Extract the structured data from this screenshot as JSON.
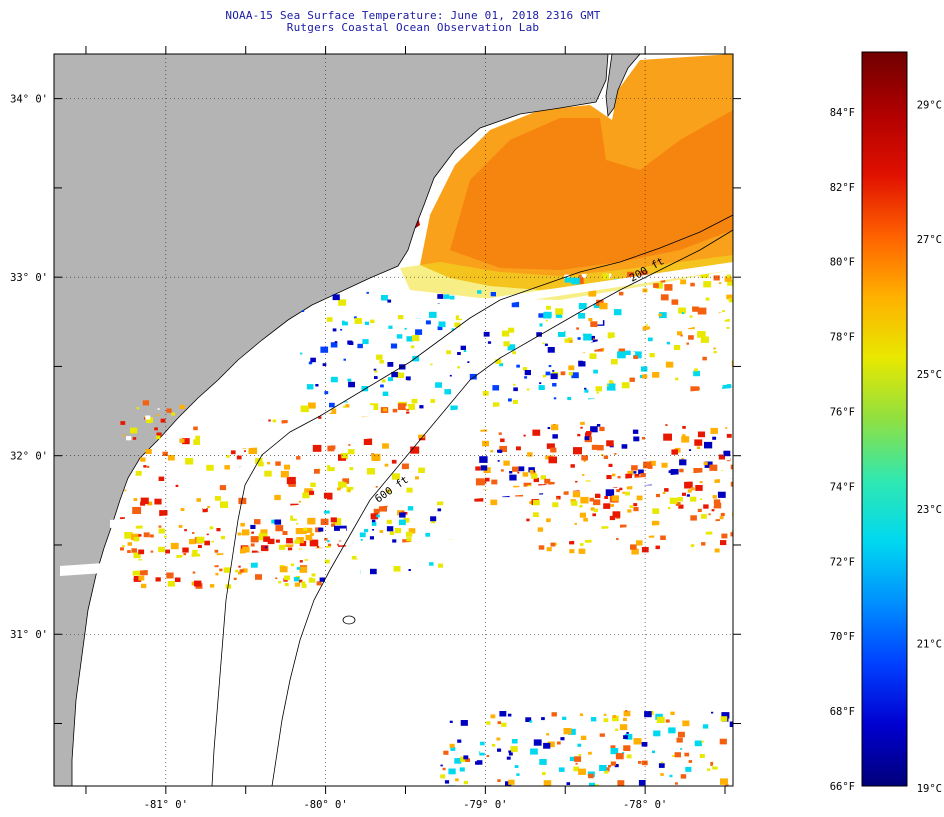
{
  "header": {
    "title": "NOAA-15 Sea Surface Temperature:  June 01, 2018 2316 GMT",
    "subtitle": "Rutgers Coastal Ocean Observation Lab"
  },
  "map": {
    "lon_range": [
      -81.7,
      -77.45
    ],
    "lat_range": [
      30.15,
      34.25
    ],
    "lat_labels": [
      {
        "lat": 34,
        "label": "34° 0'"
      },
      {
        "lat": 33,
        "label": "33° 0'"
      },
      {
        "lat": 32,
        "label": "32° 0'"
      },
      {
        "lat": 31,
        "label": "31° 0'"
      }
    ],
    "lon_labels": [
      {
        "lon": -81,
        "label": "-81° 0'"
      },
      {
        "lon": -80,
        "label": "-80° 0'"
      },
      {
        "lon": -79,
        "label": "-79° 0'"
      },
      {
        "lon": -78,
        "label": "-78° 0'"
      }
    ],
    "isobath_labels": [
      "200 ft",
      "600 ft"
    ],
    "colors": {
      "land": "#b4b4b4",
      "coast": "#000000",
      "cloud": "#ffffff"
    }
  },
  "colorbar": {
    "fahrenheit": [
      {
        "value": 84,
        "label": "84°F"
      },
      {
        "value": 82,
        "label": "82°F"
      },
      {
        "value": 80,
        "label": "80°F"
      },
      {
        "value": 78,
        "label": "78°F"
      },
      {
        "value": 76,
        "label": "76°F"
      },
      {
        "value": 74,
        "label": "74°F"
      },
      {
        "value": 72,
        "label": "72°F"
      },
      {
        "value": 70,
        "label": "70°F"
      },
      {
        "value": 68,
        "label": "68°F"
      },
      {
        "value": 66,
        "label": "66°F"
      }
    ],
    "celsius": [
      {
        "value": 29,
        "label": "29°C"
      },
      {
        "value": 27,
        "label": "27°C"
      },
      {
        "value": 25,
        "label": "25°C"
      },
      {
        "value": 23,
        "label": "23°C"
      },
      {
        "value": 21,
        "label": "21°C"
      },
      {
        "value": 19,
        "label": "19°C"
      }
    ],
    "gradient": [
      "#00007a",
      "#0000d0",
      "#0040ff",
      "#0090ff",
      "#00d8f0",
      "#30e8b0",
      "#90e040",
      "#e8e800",
      "#ffb000",
      "#ff6000",
      "#e01000",
      "#b00000",
      "#700000"
    ]
  }
}
